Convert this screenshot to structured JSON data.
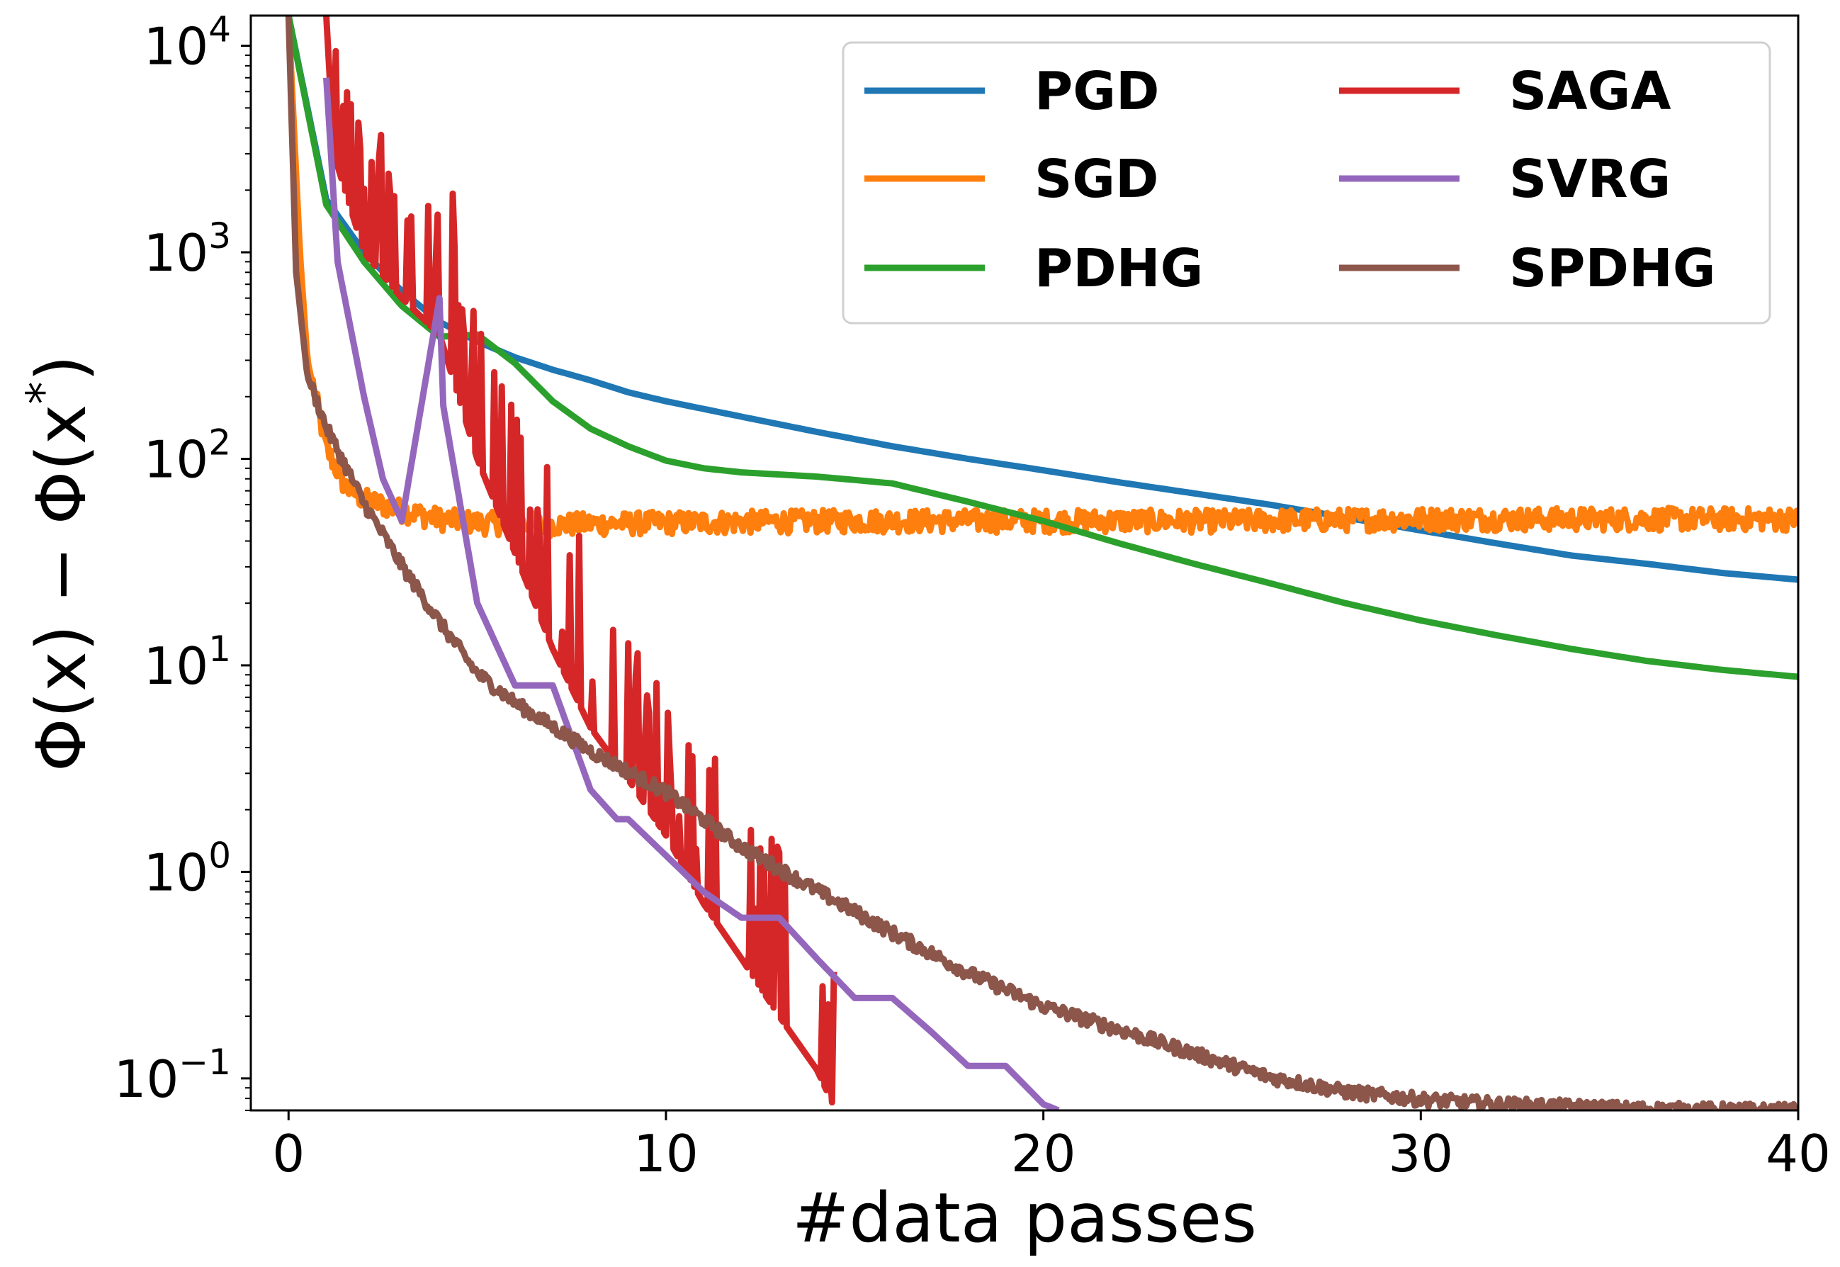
{
  "chart_data": {
    "type": "line",
    "title": "",
    "xlabel": "#data passes",
    "ylabel": "Φ(x) − Φ(x*)",
    "xlim": [
      -1,
      40
    ],
    "ylim": [
      0.07,
      14000
    ],
    "yscale": "log",
    "grid": false,
    "legend": {
      "placement": "top-right",
      "columns": 2
    },
    "x_ticks": [
      {
        "value": 0,
        "label": "0"
      },
      {
        "value": 10,
        "label": "10"
      },
      {
        "value": 20,
        "label": "20"
      },
      {
        "value": 30,
        "label": "30"
      },
      {
        "value": 40,
        "label": "40"
      }
    ],
    "y_ticks": [
      {
        "value": 10000,
        "base": "10",
        "exp": "4"
      },
      {
        "value": 1000,
        "base": "10",
        "exp": "3"
      },
      {
        "value": 100,
        "base": "10",
        "exp": "2"
      },
      {
        "value": 10,
        "base": "10",
        "exp": "1"
      },
      {
        "value": 1,
        "base": "10",
        "exp": "0"
      },
      {
        "value": 0.1,
        "base": "10",
        "exp": "−1"
      }
    ],
    "series": [
      {
        "name": "PGD",
        "color": "#1f77b4",
        "pattern": "smooth",
        "points": [
          [
            0,
            14000
          ],
          [
            1,
            1800
          ],
          [
            2,
            1000
          ],
          [
            3,
            650
          ],
          [
            4,
            460
          ],
          [
            5,
            370
          ],
          [
            6,
            310
          ],
          [
            7,
            270
          ],
          [
            8,
            240
          ],
          [
            9,
            210
          ],
          [
            10,
            190
          ],
          [
            12,
            160
          ],
          [
            14,
            135
          ],
          [
            16,
            115
          ],
          [
            18,
            100
          ],
          [
            20,
            88
          ],
          [
            22,
            77
          ],
          [
            24,
            68
          ],
          [
            26,
            60
          ],
          [
            28,
            52
          ],
          [
            30,
            45
          ],
          [
            32,
            39
          ],
          [
            34,
            34
          ],
          [
            36,
            31
          ],
          [
            38,
            28
          ],
          [
            40,
            26
          ]
        ]
      },
      {
        "name": "SGD",
        "color": "#ff7f0e",
        "pattern": "noisy-plateau",
        "points": [
          [
            0,
            14000
          ],
          [
            0.3,
            1000
          ],
          [
            0.5,
            300
          ],
          [
            1,
            110
          ],
          [
            1.5,
            72
          ],
          [
            2,
            62
          ],
          [
            3,
            55
          ],
          [
            4,
            50
          ],
          [
            5,
            48
          ],
          [
            7,
            47
          ],
          [
            10,
            48
          ],
          [
            15,
            49
          ],
          [
            20,
            49
          ],
          [
            25,
            49
          ],
          [
            30,
            50
          ],
          [
            35,
            50
          ],
          [
            40,
            50
          ]
        ],
        "noise": 0.12
      },
      {
        "name": "PDHG",
        "color": "#2ca02c",
        "pattern": "smooth",
        "points": [
          [
            0,
            14000
          ],
          [
            1,
            1700
          ],
          [
            2,
            900
          ],
          [
            3,
            550
          ],
          [
            4,
            390
          ],
          [
            5,
            400
          ],
          [
            6,
            290
          ],
          [
            7,
            190
          ],
          [
            8,
            140
          ],
          [
            9,
            115
          ],
          [
            10,
            98
          ],
          [
            11,
            90
          ],
          [
            12,
            86
          ],
          [
            14,
            82
          ],
          [
            15,
            79
          ],
          [
            16,
            76
          ],
          [
            18,
            62
          ],
          [
            20,
            50
          ],
          [
            22,
            39
          ],
          [
            24,
            31
          ],
          [
            26,
            25
          ],
          [
            28,
            20
          ],
          [
            30,
            16.5
          ],
          [
            32,
            14
          ],
          [
            34,
            12
          ],
          [
            36,
            10.5
          ],
          [
            38,
            9.5
          ],
          [
            40,
            8.8
          ]
        ]
      },
      {
        "name": "SAGA",
        "color": "#d62728",
        "pattern": "spiky",
        "points": [
          [
            1,
            14000
          ],
          [
            1.2,
            3000
          ],
          [
            2,
            1000
          ],
          [
            3,
            600
          ],
          [
            4,
            400
          ],
          [
            5,
            100
          ],
          [
            6,
            35
          ],
          [
            7,
            12
          ],
          [
            8,
            5
          ],
          [
            9,
            2.8
          ],
          [
            10,
            1.5
          ],
          [
            11,
            0.7
          ],
          [
            12,
            0.38
          ],
          [
            13,
            0.2
          ],
          [
            14,
            0.11
          ],
          [
            14.5,
            0.07
          ]
        ],
        "noise": 1.0
      },
      {
        "name": "SVRG",
        "color": "#9467bd",
        "pattern": "piecewise",
        "points": [
          [
            1,
            7000
          ],
          [
            1.3,
            900
          ],
          [
            2,
            200
          ],
          [
            2.5,
            80
          ],
          [
            3,
            50
          ],
          [
            4,
            600
          ],
          [
            4.1,
            180
          ],
          [
            5,
            20
          ],
          [
            6,
            8
          ],
          [
            7,
            8
          ],
          [
            8,
            2.5
          ],
          [
            8.7,
            1.8
          ],
          [
            9,
            1.8
          ],
          [
            10,
            1.2
          ],
          [
            11,
            0.8
          ],
          [
            12,
            0.6
          ],
          [
            13,
            0.6
          ],
          [
            14,
            0.38
          ],
          [
            15,
            0.245
          ],
          [
            16,
            0.245
          ],
          [
            17,
            0.17
          ],
          [
            18,
            0.115
          ],
          [
            19,
            0.115
          ],
          [
            20,
            0.075
          ],
          [
            20.4,
            0.07
          ]
        ]
      },
      {
        "name": "SPDHG",
        "color": "#8c564b",
        "pattern": "noisy",
        "points": [
          [
            0,
            14000
          ],
          [
            0.2,
            800
          ],
          [
            0.5,
            250
          ],
          [
            1,
            140
          ],
          [
            2,
            60
          ],
          [
            3,
            30
          ],
          [
            4,
            16
          ],
          [
            5,
            9
          ],
          [
            6,
            6.5
          ],
          [
            8,
            3.8
          ],
          [
            10,
            2.4
          ],
          [
            12,
            1.3
          ],
          [
            14,
            0.8
          ],
          [
            16,
            0.5
          ],
          [
            18,
            0.32
          ],
          [
            20,
            0.22
          ],
          [
            22,
            0.17
          ],
          [
            24,
            0.13
          ],
          [
            26,
            0.1
          ],
          [
            28,
            0.085
          ],
          [
            30,
            0.078
          ],
          [
            32,
            0.074
          ],
          [
            34,
            0.072
          ],
          [
            36,
            0.07
          ],
          [
            40,
            0.069
          ]
        ],
        "noise": 0.07
      }
    ]
  }
}
